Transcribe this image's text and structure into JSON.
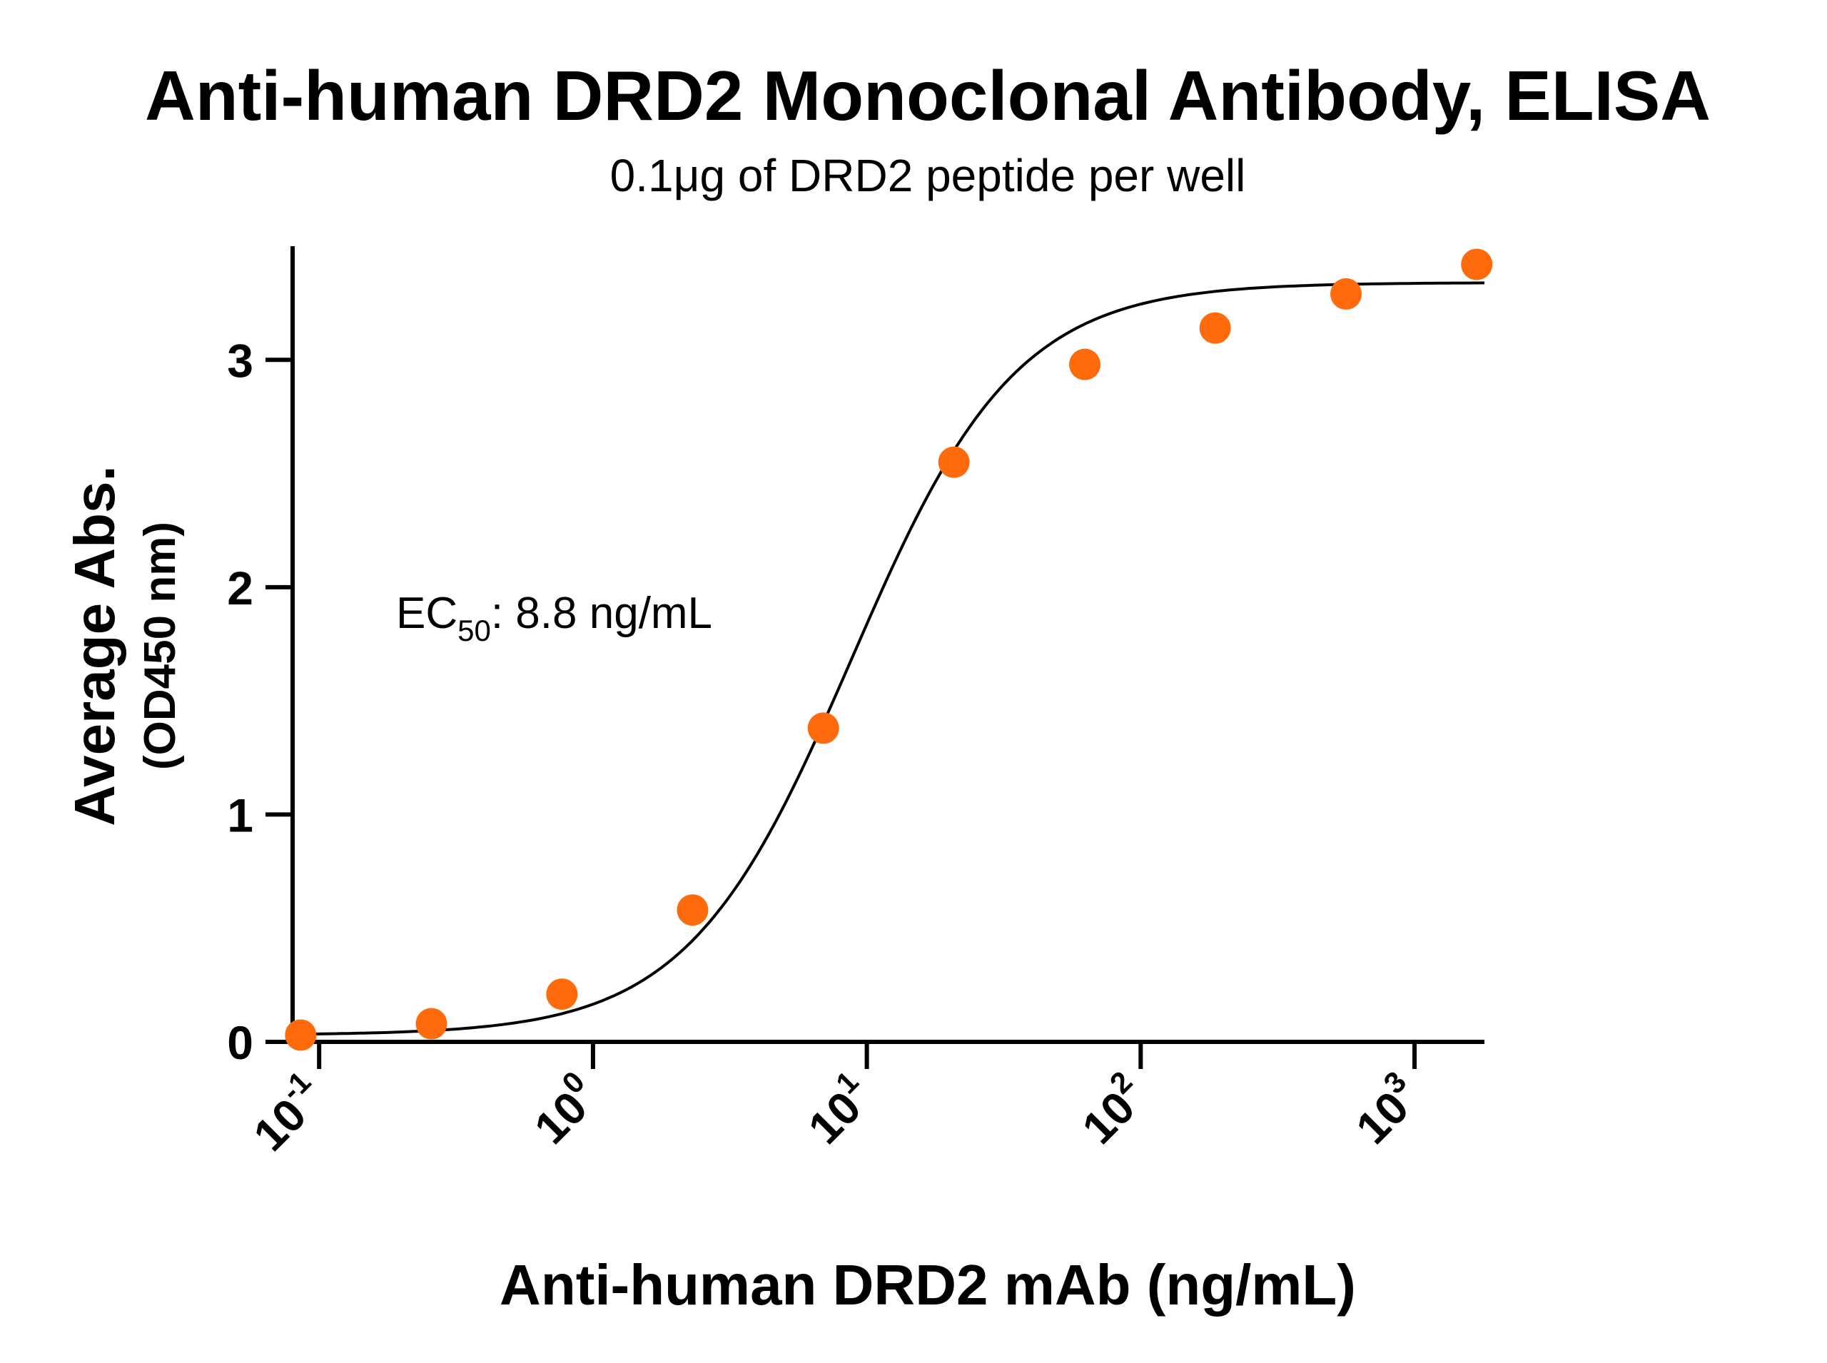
{
  "chart_data": {
    "type": "scatter",
    "title": "Anti-human DRD2 Monoclonal Antibody, ELISA",
    "subtitle": "0.1μg of DRD2 peptide per well",
    "xlabel": "Anti-human DRD2 mAb (ng/mL)",
    "ylabel": "Average Abs.",
    "ylabel_sub": "(OD450 nm)",
    "xscale": "log",
    "xlim": [
      0.08,
      1800
    ],
    "ylim": [
      0,
      3.5
    ],
    "xticks": [
      {
        "base": "10",
        "exp": "-1",
        "value": 0.1
      },
      {
        "base": "10",
        "exp": "0",
        "value": 1
      },
      {
        "base": "10",
        "exp": "1",
        "value": 10
      },
      {
        "base": "10",
        "exp": "2",
        "value": 100
      },
      {
        "base": "10",
        "exp": "3",
        "value": 1000
      }
    ],
    "yticks": [
      {
        "label": "0",
        "value": 0
      },
      {
        "label": "1",
        "value": 1
      },
      {
        "label": "2",
        "value": 2
      },
      {
        "label": "3",
        "value": 3
      }
    ],
    "annotation": {
      "prefix": "EC",
      "sub": "50",
      "suffix": ": 8.8 ng/mL"
    },
    "points_color": "#ff6a0d",
    "curve_color": "#000000",
    "grid": false,
    "legend": "none",
    "series": [
      {
        "points": [
          {
            "x": 0.0856,
            "y": 0.03
          },
          {
            "x": 0.257,
            "y": 0.08
          },
          {
            "x": 0.77,
            "y": 0.21
          },
          {
            "x": 2.31,
            "y": 0.58
          },
          {
            "x": 6.94,
            "y": 1.38
          },
          {
            "x": 20.8,
            "y": 2.55
          },
          {
            "x": 62.5,
            "y": 2.98
          },
          {
            "x": 187.0,
            "y": 3.14
          },
          {
            "x": 562.0,
            "y": 3.29
          },
          {
            "x": 1687.0,
            "y": 3.42
          }
        ]
      }
    ],
    "fit": {
      "bottom": 0.03,
      "top": 3.34,
      "ec50": 8.8,
      "hill": 1.45
    }
  }
}
